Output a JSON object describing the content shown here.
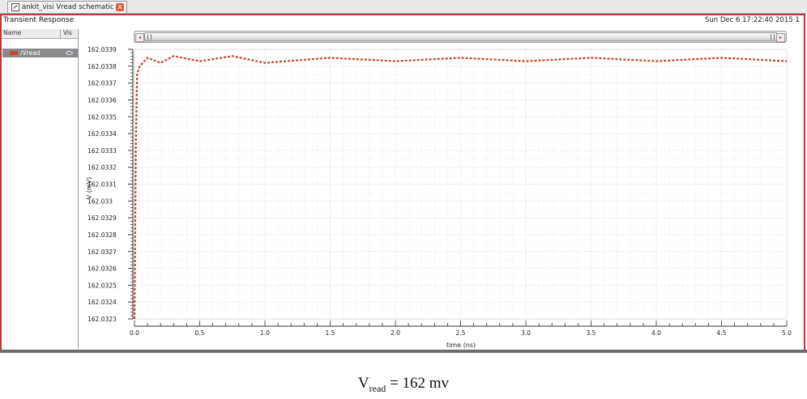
{
  "tab": {
    "label": "ankit_visi Vread schematic",
    "close_symbol": "x",
    "icon": "schematic-icon"
  },
  "panel": {
    "title": "Transient Response",
    "timestamp": "Sun Dec 6 17:22:40 2015  1"
  },
  "signals": {
    "header_name": "Name",
    "header_vis": "Vis",
    "items": [
      {
        "label": "/Vread",
        "color": "#c24a2c",
        "visible_icon": "eye-icon"
      }
    ]
  },
  "scrollbar": {
    "left_arrow": "◂",
    "right_arrow": "▸"
  },
  "colors": {
    "frame": "#b43a3a",
    "trace": "#c24a2c",
    "grid": "#d0d0d0"
  },
  "chart_data": {
    "type": "line",
    "title": "Transient Response",
    "xlabel": "time (ns)",
    "ylabel": "V (mV)",
    "xlim": [
      0.0,
      5.0
    ],
    "ylim": [
      162.0323,
      162.0339
    ],
    "grid": true,
    "x_ticks": [
      "0.0",
      "0.5",
      "1.0",
      "1.5",
      "2.0",
      "2.5",
      "3.0",
      "3.5",
      "4.0",
      "4.5",
      "5.0"
    ],
    "y_ticks": [
      "162.0339",
      "162.0338",
      "162.0337",
      "162.0336",
      "162.0335",
      "162.0334",
      "162.0333",
      "162.0332",
      "162.0331",
      "162.033",
      "162.0329",
      "162.0328",
      "162.0327",
      "162.0326",
      "162.0325",
      "162.0324",
      "162.0323"
    ],
    "series": [
      {
        "name": "/Vread",
        "style": "dashed",
        "x": [
          0.0,
          0.01,
          0.02,
          0.04,
          0.1,
          0.2,
          0.3,
          0.5,
          0.75,
          1.0,
          1.5,
          2.0,
          2.5,
          3.0,
          3.5,
          4.0,
          4.5,
          5.0
        ],
        "values": [
          162.0323,
          162.0333,
          162.03375,
          162.0338,
          162.03385,
          162.03382,
          162.03386,
          162.03383,
          162.03386,
          162.03382,
          162.03385,
          162.03383,
          162.03385,
          162.03383,
          162.03385,
          162.03383,
          162.03385,
          162.03383
        ]
      }
    ]
  },
  "caption": {
    "v": "V",
    "sub": "read",
    "rest": " = 162 mv"
  }
}
